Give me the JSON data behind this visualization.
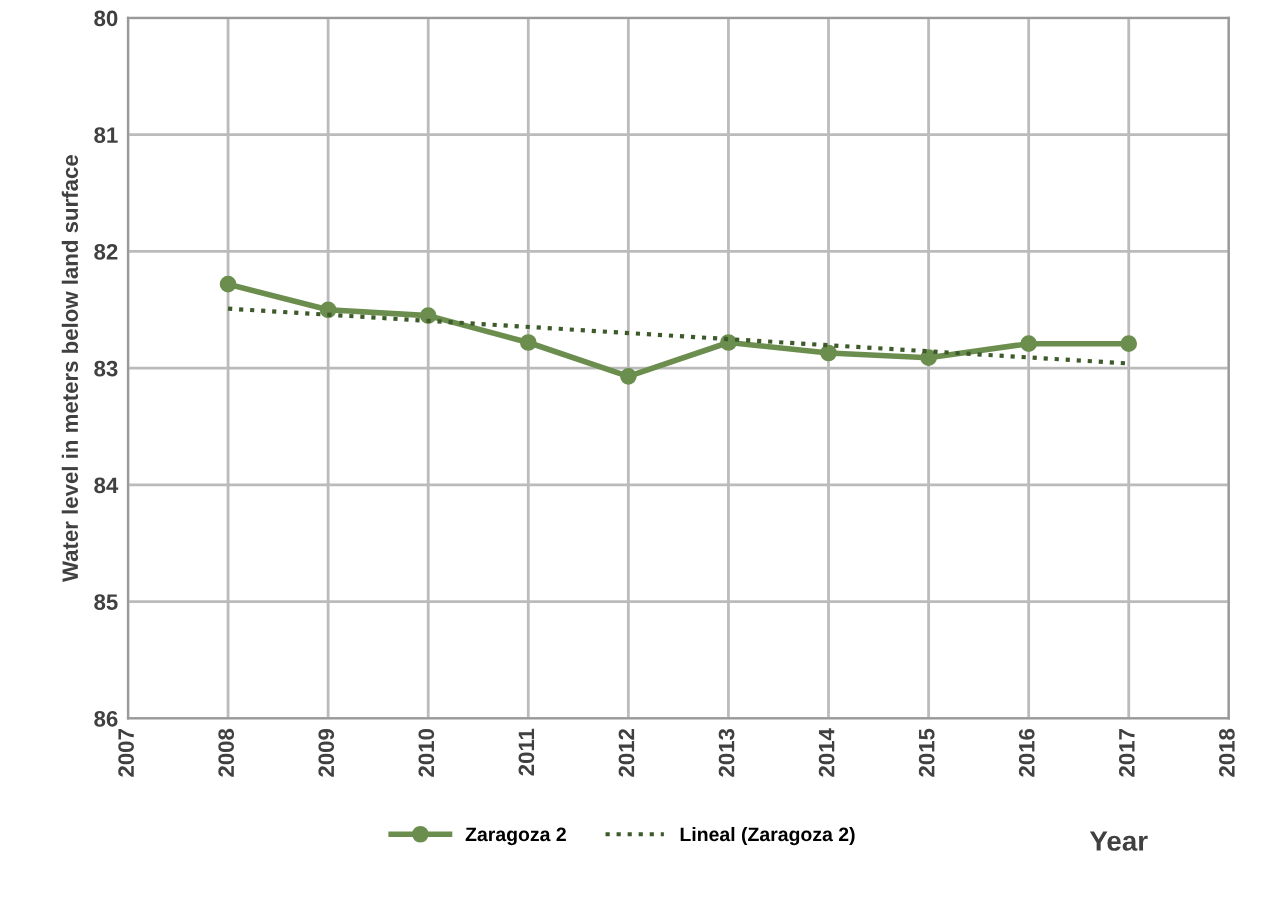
{
  "chart_data": {
    "type": "line",
    "xlabel": "Year",
    "ylabel": "Water level in meters below land surface",
    "x": [
      2008,
      2009,
      2010,
      2011,
      2012,
      2013,
      2014,
      2015,
      2016,
      2017
    ],
    "series": [
      {
        "name": "Zaragoza 2",
        "color": "#6b8e4e",
        "values": [
          82.28,
          82.5,
          82.55,
          82.78,
          83.07,
          82.78,
          82.87,
          82.91,
          82.79,
          82.79
        ],
        "marker": "circle",
        "line_style": "solid"
      },
      {
        "name": "Lineal (Zaragoza 2)",
        "color": "#3d5a2a",
        "x": [
          2008,
          2017
        ],
        "values": [
          82.49,
          82.96
        ],
        "marker": "none",
        "line_style": "dotted"
      }
    ],
    "xlim": [
      2007,
      2018
    ],
    "xticks": [
      2007,
      2008,
      2009,
      2010,
      2011,
      2012,
      2013,
      2014,
      2015,
      2016,
      2017,
      2018
    ],
    "ylim": [
      86,
      80
    ],
    "yticks": [
      80,
      81,
      82,
      83,
      84,
      85,
      86
    ],
    "grid": true,
    "legend": "bottom"
  }
}
